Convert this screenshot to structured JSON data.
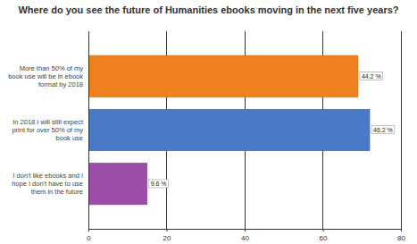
{
  "chart_data": {
    "type": "bar",
    "orientation": "horizontal",
    "title": "Where do you see the future of Humanities ebooks moving in the next five years?",
    "categories": [
      "More than 50% of my book use will be in ebook format by 2018",
      "In 2018 I will still expect print for over 50% of my book use",
      "I don't like ebooks and I hope I don't have to use them in the future"
    ],
    "values": [
      69,
      72,
      15
    ],
    "percentages": [
      {
        "value": 44.2,
        "label": "44.2 %"
      },
      {
        "value": 46.2,
        "label": "46.2 %"
      },
      {
        "value": 9.6,
        "label": "9.6 %"
      }
    ],
    "colors": [
      "#f07f1e",
      "#4a79c6",
      "#9b4ea8"
    ],
    "xlim": [
      0,
      80
    ],
    "xticks": [
      0,
      20,
      40,
      60,
      80
    ],
    "grid": true
  }
}
